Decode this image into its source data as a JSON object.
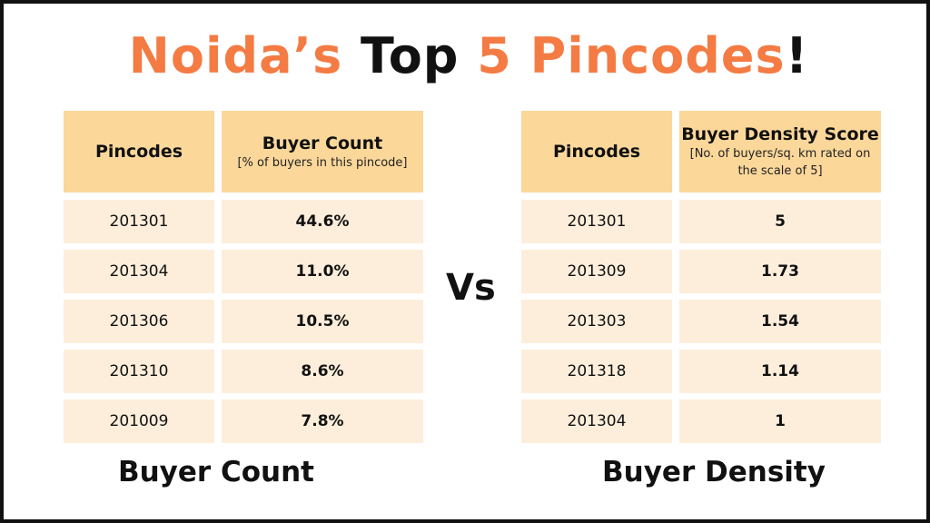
{
  "title": {
    "part1": "Noida’s",
    "part2": "Top",
    "part3": "5 Pincodes",
    "part4": "!"
  },
  "colors": {
    "accent": "#f47b43",
    "header_fill": "#fbd79a",
    "row_fill": "#fdeedb",
    "text": "#111111"
  },
  "vs_label": "Vs",
  "chart_data": [
    {
      "type": "table",
      "columns": [
        {
          "title": "Pincodes",
          "subtitle": ""
        },
        {
          "title": "Buyer Count",
          "subtitle": "[% of buyers in this pincode]"
        }
      ],
      "rows": [
        {
          "pincode": "201301",
          "value": "44.6%"
        },
        {
          "pincode": "201304",
          "value": "11.0%"
        },
        {
          "pincode": "201306",
          "value": "10.5%"
        },
        {
          "pincode": "201310",
          "value": "8.6%"
        },
        {
          "pincode": "201009",
          "value": "7.8%"
        }
      ],
      "caption": "Buyer Count"
    },
    {
      "type": "table",
      "columns": [
        {
          "title": "Pincodes",
          "subtitle": ""
        },
        {
          "title": "Buyer Density Score",
          "subtitle": "[No. of buyers/sq. km rated on the scale of 5]"
        }
      ],
      "rows": [
        {
          "pincode": "201301",
          "value": "5"
        },
        {
          "pincode": "201309",
          "value": "1.73"
        },
        {
          "pincode": "201303",
          "value": "1.54"
        },
        {
          "pincode": "201318",
          "value": "1.14"
        },
        {
          "pincode": "201304",
          "value": "1"
        }
      ],
      "caption": "Buyer Density"
    }
  ]
}
